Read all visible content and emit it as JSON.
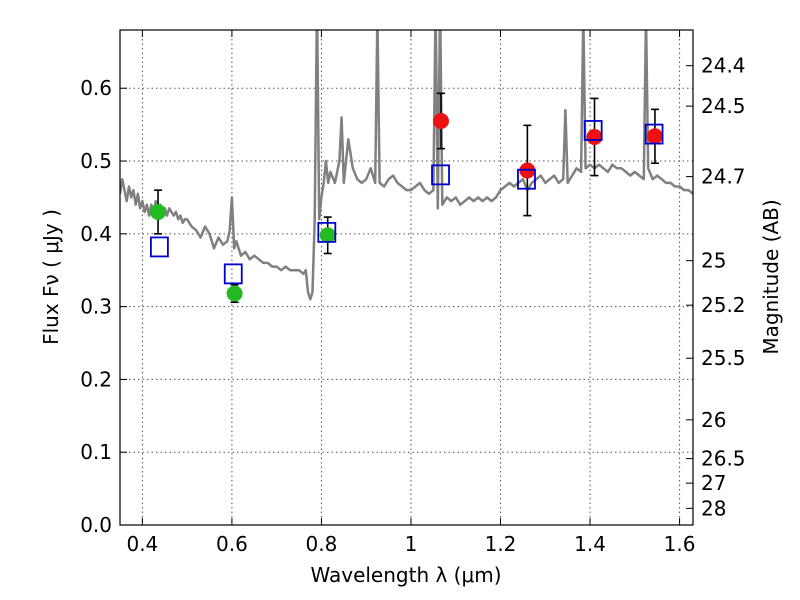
{
  "chart_data": {
    "type": "scatter",
    "xlabel": "Wavelength  λ (μm)",
    "ylabel": "Flux  Fν ( μJy )",
    "y2label": "Magnitude (AB)",
    "xlim": [
      0.35,
      1.63
    ],
    "ylim": [
      0.0,
      0.68
    ],
    "grid": true,
    "x_ticks": [
      0.4,
      0.6,
      0.8,
      1.0,
      1.2,
      1.4,
      1.6
    ],
    "x_tick_labels": [
      "0.4",
      "0.6",
      "0.8",
      "1",
      "1.2",
      "1.4",
      "1.6"
    ],
    "y_ticks": [
      0.0,
      0.1,
      0.2,
      0.3,
      0.4,
      0.5,
      0.6
    ],
    "y_tick_labels": [
      "0.0",
      "0.1",
      "0.2",
      "0.3",
      "0.4",
      "0.5",
      "0.6"
    ],
    "y2_tick_labels": [
      "24.4",
      "24.5",
      "24.7",
      "25",
      "25.2",
      "25.5",
      "26",
      "26.5",
      "27",
      "28"
    ],
    "y2_tick_flux": [
      0.631,
      0.5754,
      0.4786,
      0.3631,
      0.302,
      0.2291,
      0.1445,
      0.0912,
      0.0575,
      0.0229
    ],
    "colors": {
      "template": "#808080",
      "green": "#22bb22",
      "red": "#ee1111",
      "model_box": "#0000cc",
      "errorbar": "#000000"
    },
    "template_spectrum": {
      "x": [
        0.35,
        0.355,
        0.36,
        0.365,
        0.37,
        0.375,
        0.38,
        0.385,
        0.39,
        0.395,
        0.4,
        0.405,
        0.41,
        0.415,
        0.42,
        0.425,
        0.43,
        0.435,
        0.44,
        0.445,
        0.45,
        0.455,
        0.46,
        0.465,
        0.47,
        0.475,
        0.48,
        0.485,
        0.49,
        0.495,
        0.5,
        0.51,
        0.52,
        0.53,
        0.54,
        0.55,
        0.56,
        0.57,
        0.58,
        0.59,
        0.595,
        0.6,
        0.605,
        0.61,
        0.62,
        0.63,
        0.64,
        0.65,
        0.66,
        0.67,
        0.68,
        0.69,
        0.7,
        0.71,
        0.72,
        0.73,
        0.74,
        0.75,
        0.76,
        0.765,
        0.77,
        0.775,
        0.78,
        0.785,
        0.79,
        0.795,
        0.8,
        0.805,
        0.81,
        0.815,
        0.82,
        0.83,
        0.84,
        0.845,
        0.85,
        0.86,
        0.87,
        0.88,
        0.89,
        0.9,
        0.91,
        0.92,
        0.925,
        0.93,
        0.94,
        0.95,
        0.96,
        0.97,
        0.98,
        0.99,
        1.0,
        1.01,
        1.02,
        1.03,
        1.04,
        1.05,
        1.055,
        1.06,
        1.065,
        1.07,
        1.08,
        1.09,
        1.1,
        1.11,
        1.12,
        1.13,
        1.14,
        1.15,
        1.16,
        1.17,
        1.18,
        1.19,
        1.2,
        1.21,
        1.22,
        1.23,
        1.24,
        1.25,
        1.26,
        1.27,
        1.28,
        1.29,
        1.3,
        1.31,
        1.32,
        1.33,
        1.34,
        1.345,
        1.35,
        1.36,
        1.37,
        1.38,
        1.385,
        1.39,
        1.4,
        1.41,
        1.42,
        1.43,
        1.44,
        1.45,
        1.46,
        1.47,
        1.48,
        1.49,
        1.5,
        1.51,
        1.52,
        1.525,
        1.53,
        1.54,
        1.55,
        1.56,
        1.57,
        1.58,
        1.59,
        1.6,
        1.61,
        1.62,
        1.63
      ],
      "y": [
        0.455,
        0.475,
        0.46,
        0.445,
        0.465,
        0.45,
        0.46,
        0.44,
        0.455,
        0.435,
        0.445,
        0.43,
        0.44,
        0.425,
        0.44,
        0.43,
        0.445,
        0.43,
        0.44,
        0.425,
        0.435,
        0.425,
        0.435,
        0.43,
        0.425,
        0.43,
        0.42,
        0.425,
        0.415,
        0.42,
        0.42,
        0.41,
        0.405,
        0.395,
        0.41,
        0.4,
        0.38,
        0.395,
        0.385,
        0.39,
        0.405,
        0.45,
        0.38,
        0.39,
        0.37,
        0.375,
        0.365,
        0.37,
        0.365,
        0.36,
        0.36,
        0.355,
        0.355,
        0.35,
        0.355,
        0.35,
        0.35,
        0.35,
        0.345,
        0.35,
        0.32,
        0.31,
        0.32,
        0.42,
        0.72,
        0.42,
        0.45,
        0.47,
        0.5,
        0.47,
        0.485,
        0.47,
        0.5,
        0.56,
        0.47,
        0.53,
        0.49,
        0.475,
        0.47,
        0.475,
        0.49,
        0.47,
        0.7,
        0.47,
        0.465,
        0.475,
        0.48,
        0.47,
        0.465,
        0.46,
        0.46,
        0.465,
        0.47,
        0.46,
        0.455,
        0.46,
        0.72,
        0.435,
        0.72,
        0.44,
        0.45,
        0.445,
        0.45,
        0.44,
        0.445,
        0.45,
        0.445,
        0.45,
        0.445,
        0.45,
        0.445,
        0.45,
        0.46,
        0.465,
        0.47,
        0.465,
        0.47,
        0.475,
        0.46,
        0.47,
        0.475,
        0.48,
        0.47,
        0.475,
        0.48,
        0.47,
        0.475,
        0.57,
        0.47,
        0.48,
        0.49,
        0.485,
        0.7,
        0.49,
        0.495,
        0.49,
        0.495,
        0.49,
        0.485,
        0.495,
        0.49,
        0.49,
        0.485,
        0.48,
        0.485,
        0.48,
        0.475,
        0.7,
        0.49,
        0.475,
        0.48,
        0.475,
        0.47,
        0.47,
        0.465,
        0.465,
        0.46,
        0.46,
        0.455
      ]
    },
    "observed_green": [
      {
        "x": 0.435,
        "y": 0.43,
        "err": 0.03
      },
      {
        "x": 0.606,
        "y": 0.318,
        "err": 0.012
      },
      {
        "x": 0.814,
        "y": 0.398,
        "err": 0.025
      }
    ],
    "observed_red": [
      {
        "x": 1.067,
        "y": 0.555,
        "err": 0.038
      },
      {
        "x": 1.26,
        "y": 0.487,
        "err": 0.062
      },
      {
        "x": 1.41,
        "y": 0.533,
        "err": 0.053
      },
      {
        "x": 1.545,
        "y": 0.534,
        "err": 0.037
      }
    ],
    "model_photometry": [
      {
        "x": 0.438,
        "y": 0.382
      },
      {
        "x": 0.603,
        "y": 0.345
      },
      {
        "x": 0.812,
        "y": 0.402
      },
      {
        "x": 1.066,
        "y": 0.481
      },
      {
        "x": 1.258,
        "y": 0.475
      },
      {
        "x": 1.407,
        "y": 0.542
      },
      {
        "x": 1.543,
        "y": 0.537
      }
    ]
  }
}
